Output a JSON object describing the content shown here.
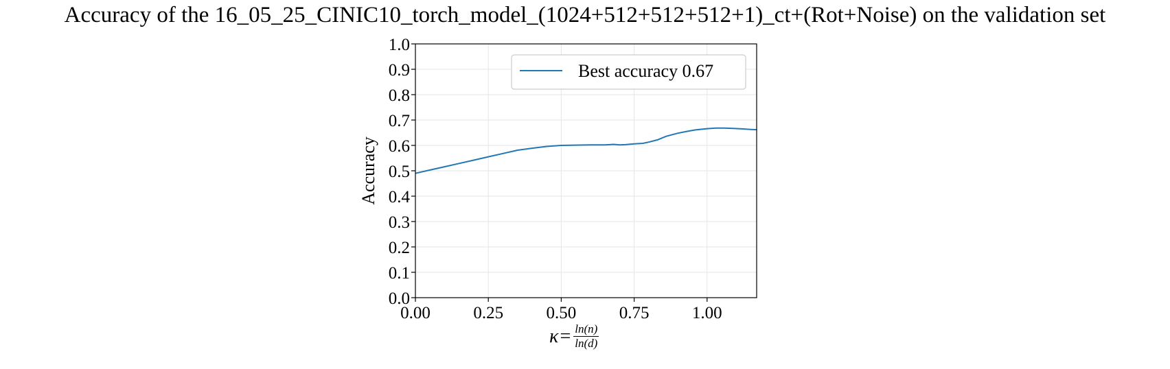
{
  "title": "Accuracy of the 16_05_25_CINIC10_torch_model_(1024+512+512+512+1)_ct+(Rot+Noise) on the validation set",
  "colors": {
    "series": "#1f77b4",
    "grid": "#e6e6e6",
    "axis": "#000000",
    "legend_border": "#cccccc"
  },
  "chart_data": {
    "type": "line",
    "title": "Accuracy of the 16_05_25_CINIC10_torch_model_(1024+512+512+512+1)_ct+(Rot+Noise) on the validation set",
    "xlabel": {
      "symbol": "κ",
      "eq": "=",
      "numerator": "ln(n)",
      "denominator": "ln(d)"
    },
    "ylabel": "Accuracy",
    "xlim": [
      0.0,
      1.17
    ],
    "ylim": [
      0.0,
      1.0
    ],
    "xticks": [
      0.0,
      0.25,
      0.5,
      0.75,
      1.0
    ],
    "xtick_labels": [
      "0.00",
      "0.25",
      "0.50",
      "0.75",
      "1.00"
    ],
    "yticks": [
      0.0,
      0.1,
      0.2,
      0.3,
      0.4,
      0.5,
      0.6,
      0.7,
      0.8,
      0.9,
      1.0
    ],
    "ytick_labels": [
      "0.0",
      "0.1",
      "0.2",
      "0.3",
      "0.4",
      "0.5",
      "0.6",
      "0.7",
      "0.8",
      "0.9",
      "1.0"
    ],
    "grid": true,
    "legend_position": "top-right",
    "series": [
      {
        "name": "Best accuracy 0.67",
        "x": [
          0.0,
          0.05,
          0.1,
          0.15,
          0.2,
          0.25,
          0.3,
          0.35,
          0.4,
          0.45,
          0.5,
          0.55,
          0.6,
          0.65,
          0.68,
          0.7,
          0.72,
          0.75,
          0.78,
          0.8,
          0.83,
          0.86,
          0.9,
          0.93,
          0.96,
          1.0,
          1.03,
          1.06,
          1.09,
          1.12,
          1.15,
          1.17
        ],
        "y": [
          0.49,
          0.503,
          0.516,
          0.529,
          0.542,
          0.555,
          0.568,
          0.581,
          0.589,
          0.596,
          0.6,
          0.601,
          0.602,
          0.602,
          0.604,
          0.602,
          0.603,
          0.606,
          0.608,
          0.613,
          0.622,
          0.636,
          0.648,
          0.655,
          0.661,
          0.666,
          0.668,
          0.668,
          0.667,
          0.665,
          0.663,
          0.662
        ]
      }
    ]
  }
}
